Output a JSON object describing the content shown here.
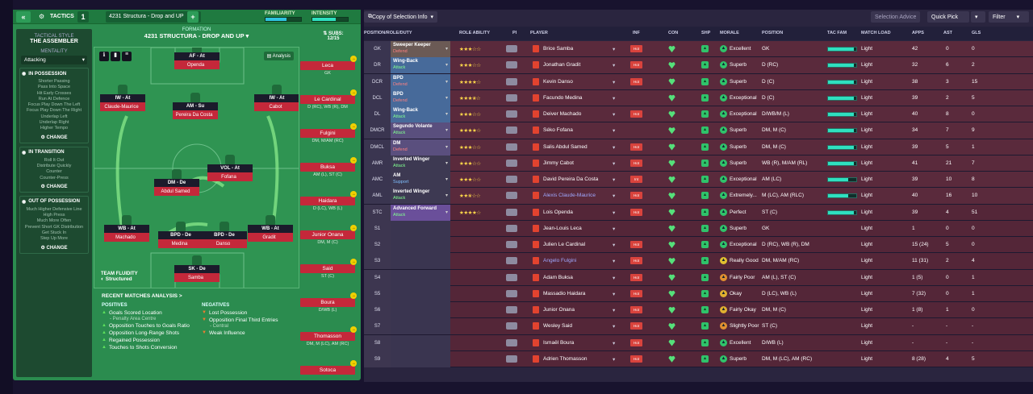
{
  "app": {
    "tactics_label": "TACTICS",
    "tactic_slot": "1",
    "tactic_name": "4231 Structura - Drop and UP",
    "add_label": "+"
  },
  "meters": {
    "familiarity_label": "FAMILIARITY",
    "intensity_label": "INTENSITY",
    "familiarity_value": 0.6,
    "intensity_value": 0.65,
    "familiarity_color": "#2fc3e0",
    "intensity_color": "#2fe0c0"
  },
  "style": {
    "label": "TACTICAL STYLE",
    "name": "THE ASSEMBLER",
    "mentality_label": "MENTALITY",
    "mentality": "Attacking",
    "in_possession": {
      "title": "IN POSSESSION",
      "items": [
        "Shorter Passing",
        "Pass Into Space",
        "Hit Early Crosses",
        "Run At Defence",
        "Focus Play Down The Left",
        "Focus Play Down The Right",
        "Underlap Left",
        "Underlap Right",
        "Higher Tempo"
      ]
    },
    "in_transition": {
      "title": "IN TRANSITION",
      "items": [
        "Roll It Out",
        "Distribute Quickly",
        "Counter",
        "Counter-Press"
      ]
    },
    "out_of_possession": {
      "title": "OUT OF POSSESSION",
      "items": [
        "Much Higher Defensive Line",
        "High Press",
        "Much More Often",
        "Prevent Short GK Distribution",
        "Get Stuck In",
        "Step Up More"
      ]
    },
    "change_label": "CHANGE"
  },
  "formation": {
    "label": "FORMATION",
    "name": "4231 STRUCTURA - DROP AND UP",
    "analysis_label": "Analysis",
    "team_fluidity_label": "TEAM FLUIDITY",
    "team_fluidity": "Structured",
    "players": [
      {
        "role": "AF - At",
        "name": "Openda"
      },
      {
        "role": "IW - At",
        "name": "Claude-Maurice"
      },
      {
        "role": "AM - Su",
        "name": "Pereira Da Costa"
      },
      {
        "role": "IW - At",
        "name": "Cabot"
      },
      {
        "role": "VOL - At",
        "name": "Fofana"
      },
      {
        "role": "DM - De",
        "name": "Abdul Samed"
      },
      {
        "role": "WB - At",
        "name": "Machado"
      },
      {
        "role": "BPD - De",
        "name": "Medina"
      },
      {
        "role": "BPD - De",
        "name": "Danso"
      },
      {
        "role": "WB - At",
        "name": "Gradit"
      },
      {
        "role": "SK - De",
        "name": "Samba"
      }
    ]
  },
  "subs": {
    "label": "SUBS:",
    "count": "12/15",
    "players": [
      {
        "name": "Leca",
        "pos": "GK"
      },
      {
        "name": "Le Cardinal",
        "pos": "D (RC), WB (R), DM"
      },
      {
        "name": "Fulgini",
        "pos": "DM, M/AM (RC)"
      },
      {
        "name": "Buksa",
        "pos": "AM (L), ST (C)"
      },
      {
        "name": "Haidara",
        "pos": "D (LC), WB (L)"
      },
      {
        "name": "Junior Onana",
        "pos": "DM, M (C)"
      },
      {
        "name": "Said",
        "pos": "ST (C)"
      },
      {
        "name": "Boura",
        "pos": "D/WB (L)"
      },
      {
        "name": "Thomasson",
        "pos": "DM, M (LC), AM (RC)"
      },
      {
        "name": "Sotoca",
        "pos": ""
      }
    ]
  },
  "recent": {
    "title": "RECENT MATCHES ANALYSIS >",
    "positives_label": "POSITIVES",
    "negatives_label": "NEGATIVES",
    "positives": [
      {
        "t": "Goals Scored Location",
        "s": "- Penalty Area Centre"
      },
      {
        "t": "Opposition Touches to Goals Ratio",
        "s": ""
      },
      {
        "t": "Opposition Long-Range Shots",
        "s": ""
      },
      {
        "t": "Regained Possession",
        "s": ""
      },
      {
        "t": "Touches to Shots Conversion",
        "s": ""
      }
    ],
    "negatives": [
      {
        "t": "Lost Possession",
        "s": ""
      },
      {
        "t": "Opposition Final Third Entries",
        "s": "- Central"
      },
      {
        "t": "Weak Influence",
        "s": ""
      }
    ]
  },
  "right": {
    "copy_label": "Copy of Selection Info",
    "selection_advice": "Selection Advice",
    "quick_pick": "Quick Pick",
    "filter": "Filter",
    "headers": [
      "POSITION/ROLE/DUTY",
      "ROLE ABILITY",
      "PI",
      "PLAYER",
      "INF",
      "CON",
      "SHP",
      "MORALE",
      "POSITION",
      "TAC FAM",
      "MATCH LOAD",
      "APPS",
      "AST",
      "GLS"
    ],
    "rows": [
      {
        "pos": "GK",
        "role": "Sweeper Keeper",
        "duty": "Defend",
        "stars": 3,
        "player": "Brice Samba",
        "inf": "Hot",
        "morale": "Excellent",
        "position": "GK",
        "fam": 0.9,
        "load": "Light",
        "apps": "42",
        "ast": "0",
        "gls": "0",
        "bg": "#6b5a55",
        "mcol": "#2fc36a"
      },
      {
        "pos": "DR",
        "role": "Wing-Back",
        "duty": "Attack",
        "stars": 3,
        "player": "Jonathan Gradit",
        "inf": "Hot",
        "morale": "Superb",
        "position": "D (RC)",
        "fam": 0.9,
        "load": "Light",
        "apps": "32",
        "ast": "6",
        "gls": "2",
        "bg": "#476a9a",
        "mcol": "#2fc36a"
      },
      {
        "pos": "DCR",
        "role": "BPD",
        "duty": "Defend",
        "stars": 4,
        "player": "Kevin Danso",
        "inf": "Hot",
        "morale": "Superb",
        "position": "D (C)",
        "fam": 0.9,
        "load": "Light",
        "apps": "38",
        "ast": "3",
        "gls": "15",
        "bg": "#476a9a",
        "mcol": "#2fc36a"
      },
      {
        "pos": "DCL",
        "role": "BPD",
        "duty": "Defend",
        "stars": 3.5,
        "player": "Facundo Medina",
        "inf": "",
        "morale": "Exceptional",
        "position": "D (C)",
        "fam": 0.9,
        "load": "Light",
        "apps": "39",
        "ast": "2",
        "gls": "5",
        "bg": "#476a9a",
        "mcol": "#2fc36a"
      },
      {
        "pos": "DL",
        "role": "Wing-Back",
        "duty": "Attack",
        "stars": 3,
        "player": "Deiver Machado",
        "inf": "Hot",
        "morale": "Exceptional",
        "position": "D/WB/M (L)",
        "fam": 0.9,
        "load": "Light",
        "apps": "40",
        "ast": "8",
        "gls": "0",
        "bg": "#476a9a",
        "mcol": "#2fc36a"
      },
      {
        "pos": "DMCR",
        "role": "Segundo Volante",
        "duty": "Attack",
        "stars": 4,
        "player": "Séko Fofana",
        "inf": "",
        "morale": "Superb",
        "position": "DM, M (C)",
        "fam": 0.9,
        "load": "Light",
        "apps": "34",
        "ast": "7",
        "gls": "9",
        "bg": "#5a4f7e",
        "mcol": "#2fc36a"
      },
      {
        "pos": "DMCL",
        "role": "DM",
        "duty": "Defend",
        "stars": 3,
        "player": "Salis Abdul Samed",
        "inf": "Hot",
        "morale": "Superb",
        "position": "DM, M (C)",
        "fam": 0.9,
        "load": "Light",
        "apps": "39",
        "ast": "5",
        "gls": "1",
        "bg": "#5a4f7e",
        "mcol": "#2fc36a"
      },
      {
        "pos": "AMR",
        "role": "Inverted Winger",
        "duty": "Attack",
        "stars": 3,
        "player": "Jimmy Cabot",
        "inf": "Hot",
        "morale": "Superb",
        "position": "WB (R), M/AM (RL)",
        "fam": 0.9,
        "load": "Light",
        "apps": "41",
        "ast": "21",
        "gls": "7",
        "bg": "#3d3952",
        "mcol": "#2fc36a"
      },
      {
        "pos": "AMC",
        "role": "AM",
        "duty": "Support",
        "stars": 3,
        "player": "David Pereira Da Costa",
        "inf": "Int",
        "morale": "Exceptional",
        "position": "AM (LC)",
        "fam": 0.7,
        "load": "Light",
        "apps": "39",
        "ast": "10",
        "gls": "8",
        "bg": "#3d3952",
        "mcol": "#2fc36a"
      },
      {
        "pos": "AML",
        "role": "Inverted Winger",
        "duty": "Attack",
        "stars": 2.5,
        "player": "Alexis Claude-Maurice",
        "inf": "Hot",
        "morale": "Extremely...",
        "position": "M (LC), AM (RLC)",
        "fam": 0.7,
        "load": "Light",
        "apps": "40",
        "ast": "16",
        "gls": "10",
        "bg": "#3d3952",
        "mcol": "#2fc36a"
      },
      {
        "pos": "STC",
        "role": "Advanced Forward",
        "duty": "Attack",
        "stars": 4,
        "player": "Lois Openda",
        "inf": "Hot",
        "morale": "Perfect",
        "position": "ST (C)",
        "fam": 0.9,
        "load": "Light",
        "apps": "39",
        "ast": "4",
        "gls": "51",
        "bg": "#6a4f9a",
        "mcol": "#2fc36a"
      },
      {
        "pos": "S1",
        "role": "",
        "duty": "",
        "stars": 0,
        "player": "Jean-Louis Leca",
        "inf": "",
        "morale": "Superb",
        "position": "GK",
        "fam": 0,
        "load": "Light",
        "apps": "1",
        "ast": "0",
        "gls": "0",
        "bg": "",
        "mcol": "#2fc36a"
      },
      {
        "pos": "S2",
        "role": "",
        "duty": "",
        "stars": 0,
        "player": "Julien Le Cardinal",
        "inf": "Hot",
        "morale": "Exceptional",
        "position": "D (RC), WB (R), DM",
        "fam": 0,
        "load": "Light",
        "apps": "15 (24)",
        "ast": "5",
        "gls": "0",
        "bg": "",
        "mcol": "#2fc36a"
      },
      {
        "pos": "S3",
        "role": "",
        "duty": "",
        "stars": 0,
        "player": "Angelo Fulgini",
        "inf": "Hot",
        "morale": "Really Good",
        "position": "DM, M/AM (RC)",
        "fam": 0,
        "load": "Light",
        "apps": "11 (31)",
        "ast": "2",
        "gls": "4",
        "bg": "",
        "mcol": "#e0c030"
      },
      {
        "pos": "S4",
        "role": "",
        "duty": "",
        "stars": 0,
        "player": "Adam Buksa",
        "inf": "Hot",
        "morale": "Fairly Poor",
        "position": "AM (L), ST (C)",
        "fam": 0,
        "load": "Light",
        "apps": "1 (5)",
        "ast": "0",
        "gls": "1",
        "bg": "",
        "mcol": "#e09030"
      },
      {
        "pos": "S5",
        "role": "",
        "duty": "",
        "stars": 0,
        "player": "Massadio Haidara",
        "inf": "Hot",
        "morale": "Okay",
        "position": "D (LC), WB (L)",
        "fam": 0,
        "load": "Light",
        "apps": "7 (32)",
        "ast": "0",
        "gls": "1",
        "bg": "",
        "mcol": "#e0b030"
      },
      {
        "pos": "S6",
        "role": "",
        "duty": "",
        "stars": 0,
        "player": "Junior Onana",
        "inf": "Hot",
        "morale": "Fairly Okay",
        "position": "DM, M (C)",
        "fam": 0,
        "load": "Light",
        "apps": "1 (8)",
        "ast": "1",
        "gls": "0",
        "bg": "",
        "mcol": "#e0b030"
      },
      {
        "pos": "S7",
        "role": "",
        "duty": "",
        "stars": 0,
        "player": "Wesley Said",
        "inf": "Hot",
        "morale": "Slightly Poor",
        "position": "ST (C)",
        "fam": 0,
        "load": "Light",
        "apps": "-",
        "ast": "-",
        "gls": "-",
        "bg": "",
        "mcol": "#e09030"
      },
      {
        "pos": "S8",
        "role": "",
        "duty": "",
        "stars": 0,
        "player": "Ismaël Boura",
        "inf": "Hot",
        "morale": "Excellent",
        "position": "D/WB (L)",
        "fam": 0,
        "load": "Light",
        "apps": "-",
        "ast": "-",
        "gls": "-",
        "bg": "",
        "mcol": "#2fc36a"
      },
      {
        "pos": "S9",
        "role": "",
        "duty": "",
        "stars": 0,
        "player": "Adrien Thomasson",
        "inf": "Hot",
        "morale": "Superb",
        "position": "DM, M (LC), AM (RC)",
        "fam": 0,
        "load": "Light",
        "apps": "8 (28)",
        "ast": "4",
        "gls": "5",
        "bg": "",
        "mcol": "#2fc36a"
      }
    ]
  }
}
